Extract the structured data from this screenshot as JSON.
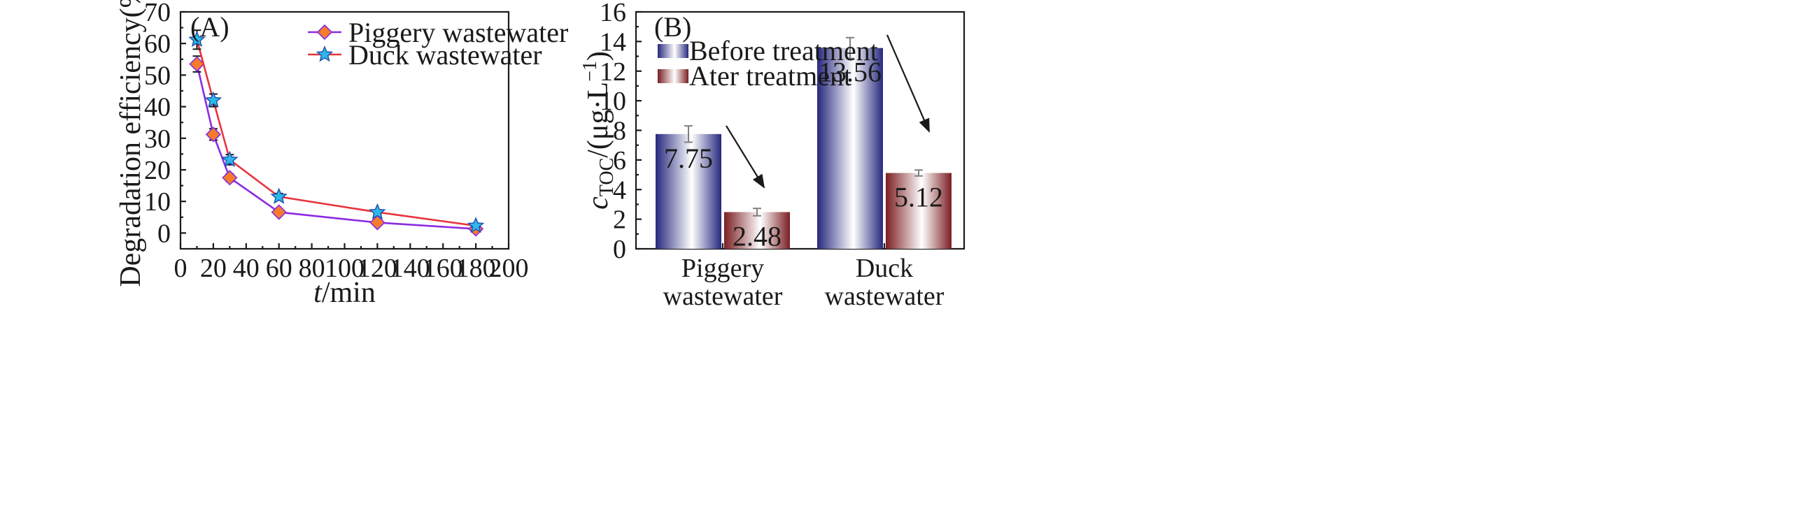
{
  "chart_data": [
    {
      "id": "A",
      "type": "line",
      "panel_label": "(A)",
      "xlabel_italic": "t",
      "xlabel_rest": "/min",
      "ylabel": "Degradation efficiency(%)",
      "xlim": [
        0,
        200
      ],
      "ylim": [
        -5,
        70
      ],
      "xticks": [
        0,
        20,
        40,
        60,
        80,
        100,
        120,
        140,
        160,
        180,
        200
      ],
      "yticks": [
        0,
        10,
        20,
        30,
        40,
        50,
        60,
        70
      ],
      "legend_position": "top-right",
      "series": [
        {
          "name": "Piggery wastewater",
          "marker": "diamond",
          "line_color": "#8b2be2",
          "marker_color": "#f57c2a",
          "x": [
            10,
            20,
            30,
            60,
            120,
            180
          ],
          "y": [
            53.5,
            31.2,
            17.5,
            6.6,
            3.3,
            1.3
          ],
          "err": [
            2.5,
            1.8,
            1.2,
            0.8,
            0.6,
            0.5
          ]
        },
        {
          "name": "Duck wastewater",
          "marker": "star",
          "line_color": "#e8343c",
          "marker_color": "#2fb6ea",
          "x": [
            10,
            20,
            30,
            60,
            120,
            180
          ],
          "y": [
            61.2,
            42.0,
            23.2,
            11.5,
            6.6,
            2.3
          ],
          "err": [
            3.0,
            2.0,
            1.6,
            1.0,
            0.7,
            0.5
          ]
        }
      ]
    },
    {
      "id": "B",
      "type": "bar",
      "panel_label": "(B)",
      "ylabel_main": "c",
      "ylabel_sub": "TOC",
      "ylabel_rest": "/(μg·L",
      "ylabel_sup": "−1",
      "ylabel_close": ")",
      "ylim": [
        0,
        16
      ],
      "yticks": [
        0,
        2,
        4,
        6,
        8,
        10,
        12,
        14,
        16
      ],
      "legend_position": "top-left",
      "categories": [
        {
          "line1": "Piggery",
          "line2": "wastewater"
        },
        {
          "line1": "Duck",
          "line2": "wastewater"
        }
      ],
      "series": [
        {
          "name": "Before treatment",
          "color": "#26287e",
          "values": [
            7.75,
            13.56
          ],
          "labels": [
            "7.75",
            "13.56"
          ],
          "err": [
            0.55,
            0.7
          ]
        },
        {
          "name": "Ater treatment",
          "color": "#7b1e22",
          "values": [
            2.48,
            5.12
          ],
          "labels": [
            "2.48",
            "5.12"
          ],
          "err": [
            0.25,
            0.2
          ]
        }
      ]
    }
  ]
}
